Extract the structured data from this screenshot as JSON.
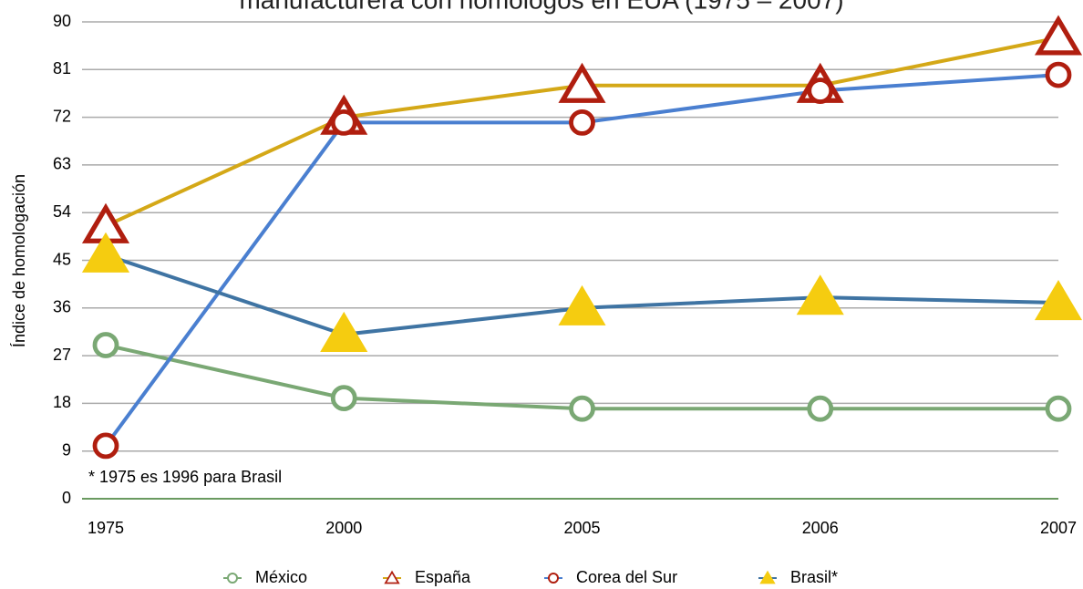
{
  "chart_data": {
    "type": "line",
    "title": "manufacturera con homólogos en EUA (1975 – 2007)",
    "y_label": "Índice de homologación",
    "annotation": "* 1975 es 1996 para Brasil",
    "categories": [
      "1975",
      "2000",
      "2005",
      "2006",
      "2007"
    ],
    "ylim": [
      0,
      90
    ],
    "yticks": [
      0,
      9,
      18,
      27,
      36,
      45,
      54,
      63,
      72,
      81,
      90
    ],
    "grid": true,
    "legend": "bottom",
    "series": [
      {
        "name": "México",
        "color": "#7aa874",
        "marker": "circle",
        "marker_color": "#7aa874",
        "values": [
          29,
          19,
          17,
          17,
          17
        ]
      },
      {
        "name": "España",
        "color": "#d4a817",
        "marker": "triangle",
        "marker_color": "#b01e0f",
        "values": [
          51.5,
          72,
          78,
          78,
          87
        ]
      },
      {
        "name": "Corea del Sur",
        "color": "#4a7fd0",
        "marker": "circle",
        "marker_color": "#b01e0f",
        "values": [
          10,
          71,
          71,
          77,
          80
        ]
      },
      {
        "name": "Brasil*",
        "color": "#3f74a3",
        "marker": "triangle",
        "marker_color": "#f5cc10",
        "values": [
          46,
          31,
          36,
          38,
          37
        ]
      }
    ]
  }
}
